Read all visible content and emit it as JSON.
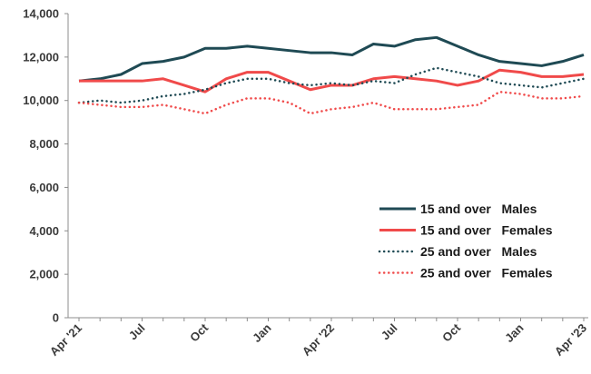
{
  "chart_data": {
    "type": "line",
    "title": "",
    "xlabel": "",
    "ylabel": "",
    "ylim": [
      0,
      14000
    ],
    "yticks": [
      "0",
      "2,000",
      "4,000",
      "6,000",
      "8,000",
      "10,000",
      "12,000",
      "14,000"
    ],
    "x": [
      "Apr '21",
      "May '21",
      "Jun '21",
      "Jul '21",
      "Aug '21",
      "Sep '21",
      "Oct '21",
      "Nov '21",
      "Dec '21",
      "Jan '22",
      "Feb '22",
      "Mar '22",
      "Apr '22",
      "May '22",
      "Jun '22",
      "Jul '22",
      "Aug '22",
      "Sep '22",
      "Oct '22",
      "Nov '22",
      "Dec '22",
      "Jan '23",
      "Feb '23",
      "Mar '23",
      "Apr '23"
    ],
    "xtick_labels": [
      {
        "index": 0,
        "label": "Apr '21"
      },
      {
        "index": 3,
        "label": "Jul"
      },
      {
        "index": 6,
        "label": "Oct"
      },
      {
        "index": 9,
        "label": "Jan"
      },
      {
        "index": 12,
        "label": "Apr '22"
      },
      {
        "index": 15,
        "label": "Jul"
      },
      {
        "index": 18,
        "label": "Oct"
      },
      {
        "index": 21,
        "label": "Jan"
      },
      {
        "index": 24,
        "label": "Apr '23"
      }
    ],
    "grid": false,
    "legend_position": "bottom-right",
    "series": [
      {
        "name": "15 and over   Males",
        "color": "#1f4a54",
        "style": "solid",
        "values": [
          10900,
          11000,
          11200,
          11700,
          11800,
          12000,
          12400,
          12400,
          12500,
          12400,
          12300,
          12200,
          12200,
          12100,
          12600,
          12500,
          12800,
          12900,
          12500,
          12100,
          11800,
          11700,
          11600,
          11800,
          12100
        ]
      },
      {
        "name": "15 and over   Females",
        "color": "#f04a4a",
        "style": "solid",
        "values": [
          10900,
          10900,
          10900,
          10900,
          11000,
          10700,
          10400,
          11000,
          11300,
          11300,
          10900,
          10500,
          10700,
          10700,
          11000,
          11100,
          11000,
          10900,
          10700,
          10900,
          11400,
          11300,
          11100,
          11100,
          11200
        ]
      },
      {
        "name": "25 and over   Males",
        "color": "#1f4a54",
        "style": "dotted",
        "values": [
          9900,
          10000,
          9900,
          10000,
          10200,
          10300,
          10500,
          10800,
          11000,
          11000,
          10800,
          10700,
          10800,
          10700,
          10900,
          10800,
          11200,
          11500,
          11300,
          11100,
          10800,
          10700,
          10600,
          10800,
          11000
        ]
      },
      {
        "name": "25 and over   Females",
        "color": "#f04a4a",
        "style": "dotted",
        "values": [
          9900,
          9800,
          9700,
          9700,
          9800,
          9600,
          9400,
          9800,
          10100,
          10100,
          9900,
          9400,
          9600,
          9700,
          9900,
          9600,
          9600,
          9600,
          9700,
          9800,
          10400,
          10300,
          10100,
          10100,
          10200
        ]
      }
    ]
  }
}
